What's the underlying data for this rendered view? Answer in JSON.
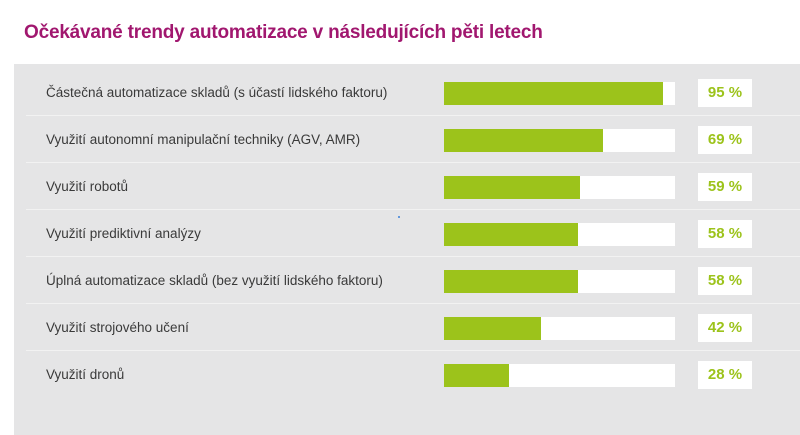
{
  "colors": {
    "title": "#a1176f",
    "accent": "#9cc31b"
  },
  "chart_data": {
    "type": "bar",
    "orientation": "horizontal",
    "title": "Očekávané trendy automatizace v následujících pěti letech",
    "xlim": [
      0,
      100
    ],
    "categories": [
      "Částečná automatizace skladů (s účastí lidského faktoru)",
      "Využití autonomní manipulační techniky (AGV, AMR)",
      "Využití robotů",
      "Využití prediktivní analýzy",
      "Úplná automatizace skladů (bez využití lidského faktoru)",
      "Využití strojového učení",
      "Využití dronů"
    ],
    "values": [
      95,
      69,
      59,
      58,
      58,
      42,
      28
    ],
    "value_labels": [
      "95 %",
      "69 %",
      "59 %",
      "58 %",
      "58 %",
      "42 %",
      "28 %"
    ]
  }
}
